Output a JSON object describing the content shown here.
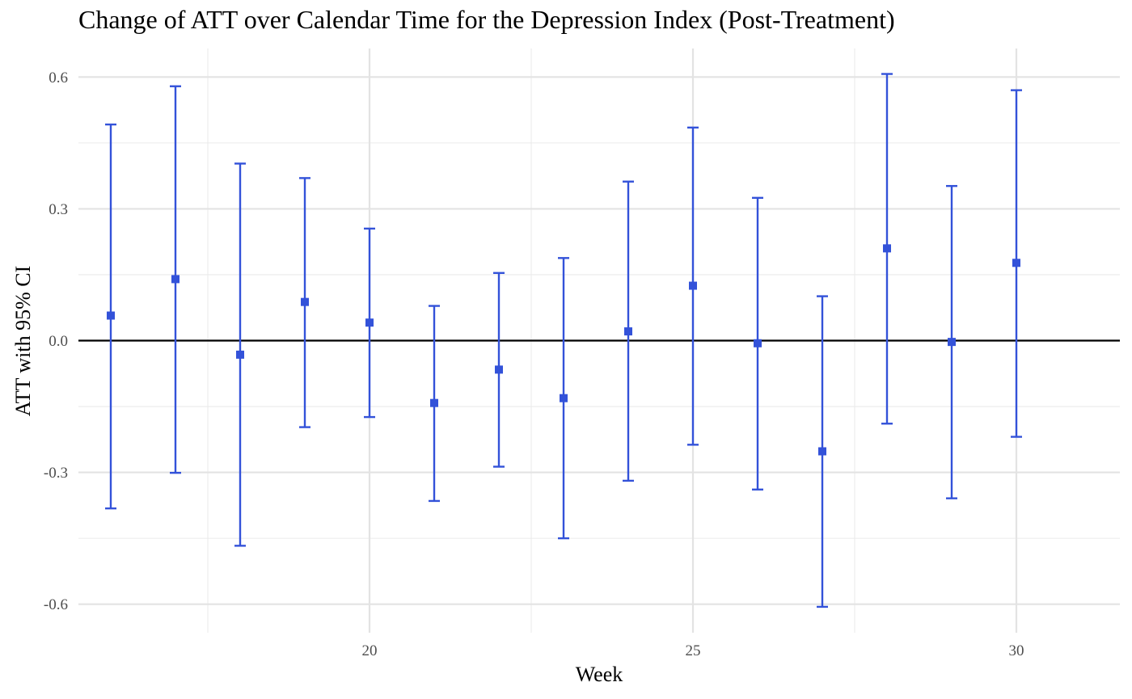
{
  "chart_data": {
    "type": "scatter",
    "title": "Change of ATT over Calendar Time for the Depression Index (Post-Treatment)",
    "xlabel": "Week",
    "ylabel": "ATT with 95% CI",
    "xlim": [
      15.5,
      31.6
    ],
    "ylim": [
      -0.665,
      0.665
    ],
    "x_ticks": [
      20,
      25,
      30
    ],
    "x_tick_labels": [
      "20",
      "25",
      "30"
    ],
    "y_ticks": [
      -0.6,
      -0.3,
      0.0,
      0.3,
      0.6
    ],
    "y_tick_labels": [
      "-0.6",
      "-0.3",
      "0.0",
      "0.3",
      "0.6"
    ],
    "grid": true,
    "reference_line_y": 0,
    "point_color": "#3352d9",
    "series": [
      {
        "x": [
          16,
          17,
          18,
          19,
          20,
          21,
          22,
          23,
          24,
          25,
          26,
          27,
          28,
          29,
          30
        ],
        "y": [
          0.057,
          0.14,
          -0.032,
          0.088,
          0.041,
          -0.142,
          -0.066,
          -0.131,
          0.021,
          0.125,
          -0.006,
          -0.252,
          0.21,
          -0.003,
          0.177
        ],
        "ci_low": [
          -0.382,
          -0.301,
          -0.467,
          -0.197,
          -0.174,
          -0.365,
          -0.287,
          -0.45,
          -0.319,
          -0.237,
          -0.339,
          -0.606,
          -0.189,
          -0.359,
          -0.219
        ],
        "ci_high": [
          0.492,
          0.579,
          0.403,
          0.37,
          0.255,
          0.079,
          0.154,
          0.188,
          0.362,
          0.485,
          0.325,
          0.101,
          0.607,
          0.352,
          0.57
        ]
      }
    ]
  }
}
